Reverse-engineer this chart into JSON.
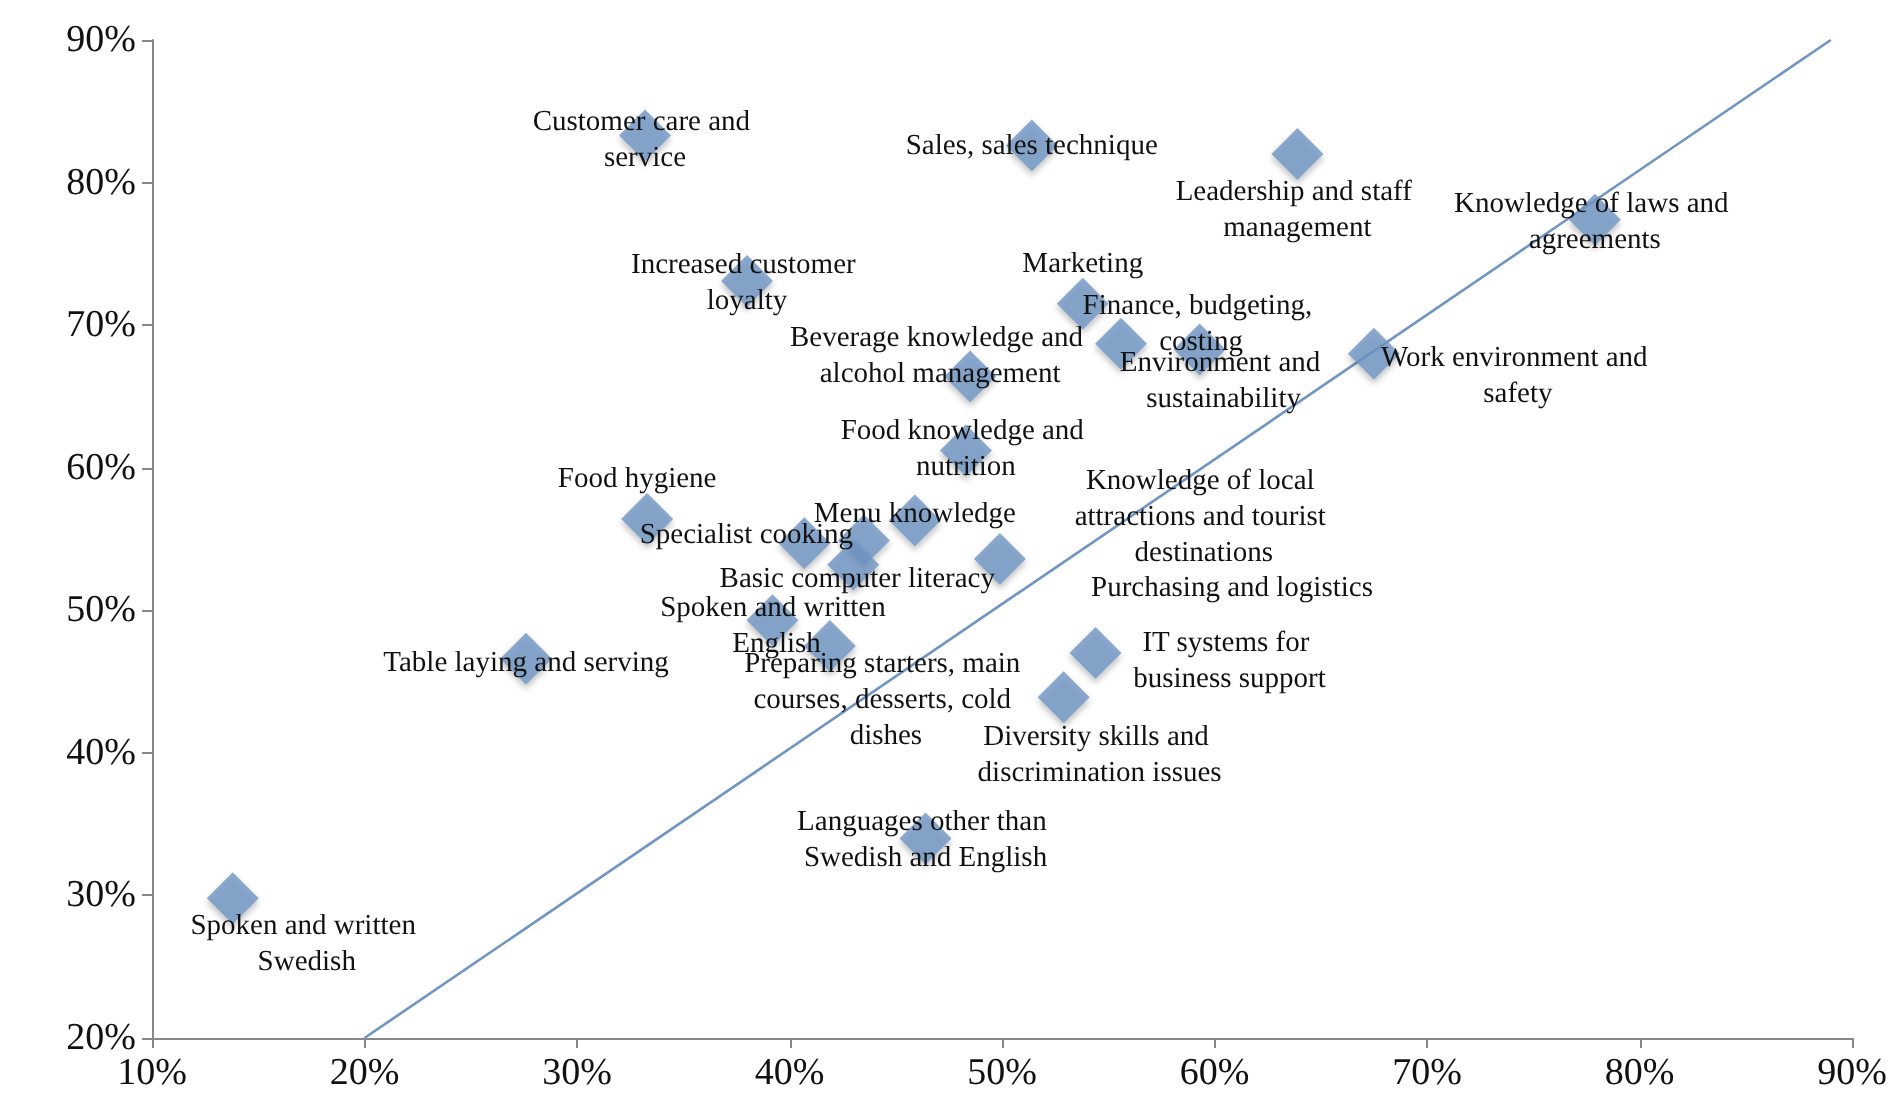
{
  "chart_data": {
    "type": "scatter",
    "marker": "diamond",
    "xlim": [
      10,
      90
    ],
    "xticks": [
      {
        "value": 10,
        "label": "10%"
      },
      {
        "value": 20,
        "label": "20%"
      },
      {
        "value": 30,
        "label": "30%"
      },
      {
        "value": 40,
        "label": "40%"
      },
      {
        "value": 50,
        "label": "50%"
      },
      {
        "value": 60,
        "label": "60%"
      },
      {
        "value": 70,
        "label": "70%"
      },
      {
        "value": 80,
        "label": "80%"
      },
      {
        "value": 90,
        "label": "90%"
      }
    ],
    "ylim": [
      20,
      90
    ],
    "yticks": [
      {
        "value": 20,
        "label": "20%"
      },
      {
        "value": 30,
        "label": "30%"
      },
      {
        "value": 40,
        "label": "40%"
      },
      {
        "value": 50,
        "label": "50%"
      },
      {
        "value": 60,
        "label": "60%"
      },
      {
        "value": 70,
        "label": "70%"
      },
      {
        "value": 80,
        "label": "80%"
      },
      {
        "value": 90,
        "label": "90%"
      }
    ],
    "series": [
      {
        "color": "#6f95c3",
        "x": [
          33.2,
          51.4,
          63.9,
          77.9,
          38.0,
          53.8,
          55.6,
          59.3,
          67.5,
          48.5,
          48.3,
          33.3,
          45.9,
          40.7,
          43.5,
          43.0,
          49.9,
          39.2,
          41.9,
          27.6,
          54.4,
          52.9,
          46.4,
          13.8
        ],
        "values": [
          83.3,
          82.6,
          82.0,
          77.4,
          73.1,
          71.5,
          68.7,
          68.3,
          68.0,
          66.4,
          61.2,
          56.4,
          56.3,
          54.7,
          54.9,
          53.2,
          53.6,
          49.3,
          47.5,
          46.6,
          47.0,
          43.9,
          34.0,
          29.8
        ]
      },
      {
        "type": "line",
        "color": "#6f95c3",
        "marker": "none",
        "x": [
          20,
          89
        ],
        "values": [
          20,
          90
        ]
      }
    ],
    "annotations": [
      {
        "text": "Customer care and service",
        "x": 33.2,
        "y": 83.3
      },
      {
        "text": "Sales, sales technique",
        "x": 51.4,
        "y": 82.6
      },
      {
        "text": "Leadership and staff management",
        "x": 63.9,
        "y": 82.0
      },
      {
        "text": "Knowledge of laws and agreements",
        "x": 77.9,
        "y": 77.4
      },
      {
        "text": "Increased customer loyalty",
        "x": 38.0,
        "y": 73.1
      },
      {
        "text": "Marketing",
        "x": 53.8,
        "y": 71.5
      },
      {
        "text": "Finance, budgeting, costing",
        "x": 55.6,
        "y": 68.7
      },
      {
        "text": "Environment and sustainability",
        "x": 59.3,
        "y": 68.3
      },
      {
        "text": "Work environment and safety",
        "x": 67.5,
        "y": 68.0
      },
      {
        "text": "Beverage knowledge and alcohol management",
        "x": 48.5,
        "y": 66.4
      },
      {
        "text": "Food knowledge and nutrition",
        "x": 48.3,
        "y": 61.2
      },
      {
        "text": "Food hygiene",
        "x": 33.3,
        "y": 56.4
      },
      {
        "text": "Menu knowledge",
        "x": 45.9,
        "y": 56.3
      },
      {
        "text": "Specialist cooking",
        "x": 40.7,
        "y": 54.7
      },
      "Purchasing and logistics",
      {
        "text": "Basic computer literacy",
        "x": 43.0,
        "y": 53.2
      },
      {
        "text": "Knowledge of local attractions and tourist destinations",
        "x": 49.9,
        "y": 53.6
      },
      {
        "text": "Spoken and written English",
        "x": 39.2,
        "y": 49.3
      },
      {
        "text": "Preparing starters, main courses, desserts, cold dishes",
        "x": 41.9,
        "y": 47.5
      },
      {
        "text": "Table laying and serving",
        "x": 27.6,
        "y": 46.6
      },
      {
        "text": "IT systems for business support",
        "x": 54.4,
        "y": 47.0
      },
      {
        "text": "Diversity skills and discrimination issues",
        "x": 52.9,
        "y": 43.9
      },
      {
        "text": "Languages other than Swedish and English",
        "x": 46.4,
        "y": 34.0
      },
      {
        "text": "Spoken and written Swedish",
        "x": 13.8,
        "y": 29.8
      }
    ]
  }
}
